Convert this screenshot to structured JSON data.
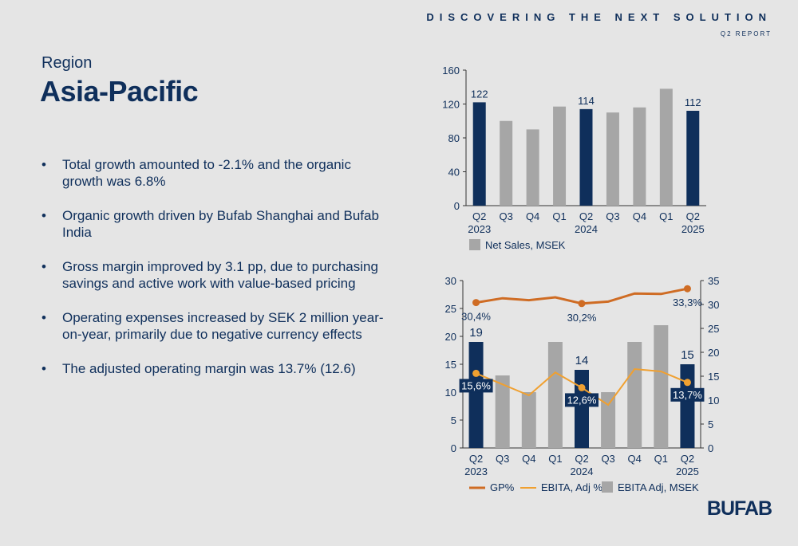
{
  "header": {
    "tagline": "DISCOVERING THE NEXT SOLUTION",
    "subtitle": "Q2 REPORT"
  },
  "page": {
    "label": "Region",
    "title": "Asia-Pacific"
  },
  "bullets": [
    "Total growth amounted to -2.1% and the organic growth was 6.8%",
    "Organic growth driven by Bufab Shanghai and Bufab India",
    "Gross margin improved by 3.1 pp, due to purchasing savings and active work with value-based pricing",
    "Operating expenses increased by SEK 2 million year-on-year, primarily due to negative currency effects",
    "The adjusted operating margin was 13.7% (12.6)"
  ],
  "bullet_glyph": "•",
  "logo": "BUFAB",
  "colors": {
    "navy": "#0f2f5b",
    "gray_bar": "#a6a6a6",
    "gp_line": "#cf6c24",
    "ebita_line": "#f0a030",
    "background": "#e5e5e5"
  },
  "chart_data": [
    {
      "type": "bar",
      "categories": [
        [
          "Q2",
          "2023"
        ],
        [
          "Q3",
          ""
        ],
        [
          "Q4",
          ""
        ],
        [
          "Q1",
          ""
        ],
        [
          "Q2",
          "2024"
        ],
        [
          "Q3",
          ""
        ],
        [
          "Q4",
          ""
        ],
        [
          "Q1",
          ""
        ],
        [
          "Q2",
          "2025"
        ]
      ],
      "series": [
        {
          "name": "Net Sales, MSEK",
          "values": [
            122,
            100,
            90,
            117,
            114,
            110,
            116,
            138,
            112
          ]
        }
      ],
      "highlight_indices": [
        0,
        4,
        8
      ],
      "data_labels": {
        "0": "122",
        "4": "114",
        "8": "112"
      },
      "ylim": [
        0,
        160
      ],
      "yticks": [
        "0",
        "40",
        "80",
        "120",
        "160"
      ],
      "legend_position": "bottom",
      "grid": false
    },
    {
      "type": "bar",
      "categories": [
        [
          "Q2",
          "2023"
        ],
        [
          "Q3",
          ""
        ],
        [
          "Q4",
          ""
        ],
        [
          "Q1",
          ""
        ],
        [
          "Q2",
          "2024"
        ],
        [
          "Q3",
          ""
        ],
        [
          "Q4",
          ""
        ],
        [
          "Q1",
          ""
        ],
        [
          "Q2",
          "2025"
        ]
      ],
      "series": [
        {
          "name": "GP%",
          "kind": "line",
          "axis": "right",
          "values": [
            30.4,
            31.3,
            30.9,
            31.5,
            30.2,
            30.6,
            32.3,
            32.2,
            33.3
          ],
          "labels": {
            "0": "30,4%",
            "4": "30,2%",
            "8": "33,3%"
          }
        },
        {
          "name": "EBITA, Adj %",
          "kind": "line",
          "axis": "right",
          "values": [
            15.6,
            13.3,
            11.0,
            15.8,
            12.6,
            9.0,
            16.5,
            16.0,
            13.7
          ],
          "labels": {
            "0": "15,6%",
            "4": "12,6%",
            "8": "13,7%"
          }
        },
        {
          "name": "EBITA Adj, MSEK",
          "kind": "bar",
          "axis": "left",
          "values": [
            19,
            13,
            10,
            19,
            14,
            10,
            19,
            22,
            15
          ],
          "labels": {
            "0": "19",
            "4": "14",
            "8": "15"
          }
        }
      ],
      "highlight_indices": [
        0,
        4,
        8
      ],
      "ylim_left": [
        0,
        30
      ],
      "yticks_left": [
        "0",
        "5",
        "10",
        "15",
        "20",
        "25",
        "30"
      ],
      "ylim_right": [
        0,
        35
      ],
      "yticks_right": [
        "0",
        "5",
        "10",
        "15",
        "20",
        "25",
        "30",
        "35"
      ],
      "legend_position": "bottom",
      "grid": false
    }
  ]
}
